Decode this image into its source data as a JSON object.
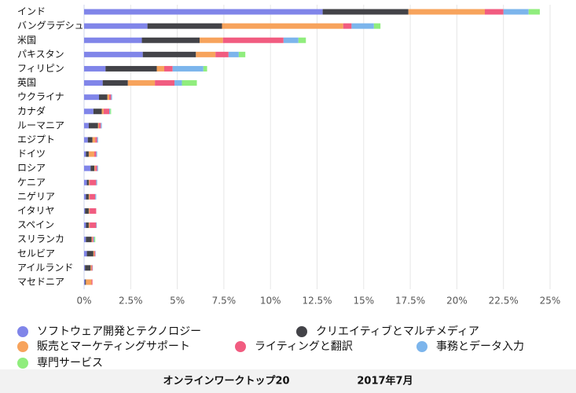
{
  "chart_data": {
    "type": "stacked-bar-horizontal",
    "title": "オンラインワークトップ20",
    "subtitle": "2017年7月",
    "categories": [
      "インド",
      "バングラデシュ",
      "米国",
      "パキスタン",
      "フィリピン",
      "英国",
      "ウクライナ",
      "カナダ",
      "ルーマニア",
      "エジプト",
      "ドイツ",
      "ロシア",
      "ケニア",
      "ニゲリア",
      "イタリヤ",
      "スペイン",
      "スリランカ",
      "セルビア",
      "アイルランド",
      "マセドニア"
    ],
    "series": [
      {
        "name": "ソフトウェア開発とテクノロジー",
        "color": "#8085e9",
        "values": [
          12.8,
          3.4,
          3.1,
          3.15,
          1.15,
          1.0,
          0.8,
          0.5,
          0.25,
          0.2,
          0.1,
          0.35,
          0.15,
          0.1,
          0.05,
          0.1,
          0.1,
          0.15,
          0.05,
          0.05
        ]
      },
      {
        "name": "クリエイティブとマルチメディア",
        "color": "#434348",
        "values": [
          4.6,
          4.0,
          3.1,
          2.85,
          2.75,
          1.35,
          0.45,
          0.45,
          0.5,
          0.25,
          0.15,
          0.2,
          0.1,
          0.15,
          0.2,
          0.15,
          0.3,
          0.35,
          0.3,
          0.05
        ]
      },
      {
        "name": "販売とマーケティングサポート",
        "color": "#f7a35c",
        "values": [
          4.1,
          6.5,
          1.25,
          1.05,
          0.4,
          1.45,
          0.1,
          0.1,
          0.05,
          0.15,
          0.3,
          0.05,
          0.05,
          0.05,
          0.05,
          0.05,
          0.05,
          0.05,
          0.05,
          0.3
        ]
      },
      {
        "name": "ライティングと翻訳",
        "color": "#f15c80",
        "values": [
          1.0,
          0.45,
          3.25,
          0.7,
          0.45,
          1.05,
          0.1,
          0.3,
          0.1,
          0.1,
          0.1,
          0.1,
          0.35,
          0.3,
          0.35,
          0.35,
          0.05,
          0.05,
          0.05,
          0.05
        ]
      },
      {
        "name": "事務とデータ入力",
        "color": "#7cb5ec",
        "values": [
          1.35,
          1.2,
          0.8,
          0.55,
          1.65,
          0.4,
          0.05,
          0.05,
          0.05,
          0.05,
          0.05,
          0.05,
          0.05,
          0.05,
          0,
          0.03,
          0.05,
          0.02,
          0.02,
          0
        ]
      },
      {
        "name": "専門サービス",
        "color": "#90ed7d",
        "values": [
          0.6,
          0.35,
          0.4,
          0.35,
          0.2,
          0.8,
          0,
          0.05,
          0,
          0,
          0,
          0,
          0,
          0,
          0,
          0,
          0.05,
          0,
          0,
          0
        ]
      }
    ],
    "xlim": [
      0,
      25
    ],
    "xticks": [
      {
        "value": 0,
        "label": "0%"
      },
      {
        "value": 2.5,
        "label": "2.5%"
      },
      {
        "value": 5,
        "label": "5%"
      },
      {
        "value": 7.5,
        "label": "7.5%"
      },
      {
        "value": 10,
        "label": "10%"
      },
      {
        "value": 12.5,
        "label": "12.5%"
      },
      {
        "value": 15,
        "label": "15%"
      },
      {
        "value": 17.5,
        "label": "17.5%"
      },
      {
        "value": 20,
        "label": "20%"
      },
      {
        "value": 22.5,
        "label": "22.5%"
      },
      {
        "value": 25,
        "label": "25%"
      }
    ],
    "grid": true,
    "legend": "bottom"
  }
}
